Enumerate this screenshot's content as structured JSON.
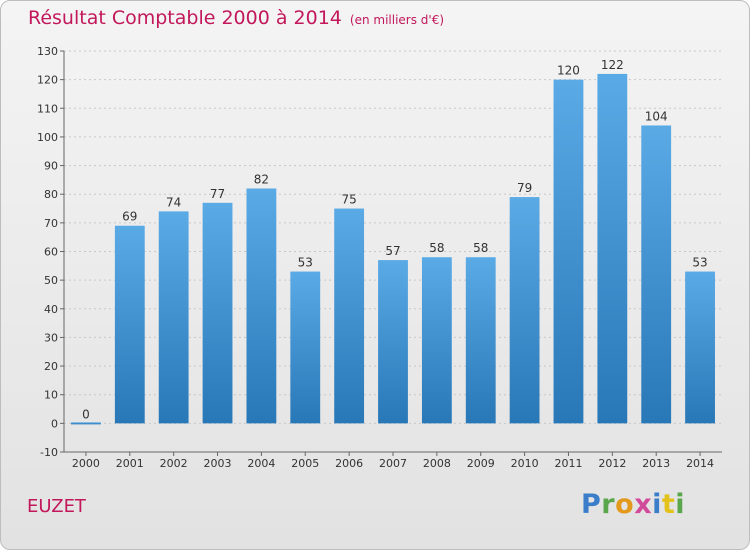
{
  "header": {
    "title": "Résultat Comptable 2000 à 2014",
    "unit": "(en milliers d'€)"
  },
  "footer": {
    "place": "EUZET",
    "logo": "Proxiti"
  },
  "colors": {
    "bar_light": "#5aaae6",
    "bar_dark": "#2878b8",
    "title": "#c2185b"
  },
  "chart_data": {
    "type": "bar",
    "title": "Résultat Comptable 2000 à 2014",
    "subtitle": "(en milliers d'€)",
    "xlabel": "",
    "ylabel": "",
    "categories": [
      "2000",
      "2001",
      "2002",
      "2003",
      "2004",
      "2005",
      "2006",
      "2007",
      "2008",
      "2009",
      "2010",
      "2011",
      "2012",
      "2013",
      "2014"
    ],
    "values": [
      0,
      69,
      74,
      77,
      82,
      53,
      75,
      57,
      58,
      58,
      79,
      120,
      122,
      104,
      53
    ],
    "ylim": [
      -10,
      130
    ],
    "yticks": [
      -10,
      0,
      10,
      20,
      30,
      40,
      50,
      60,
      70,
      80,
      90,
      100,
      110,
      120,
      130
    ],
    "grid": true,
    "legend": "none"
  }
}
